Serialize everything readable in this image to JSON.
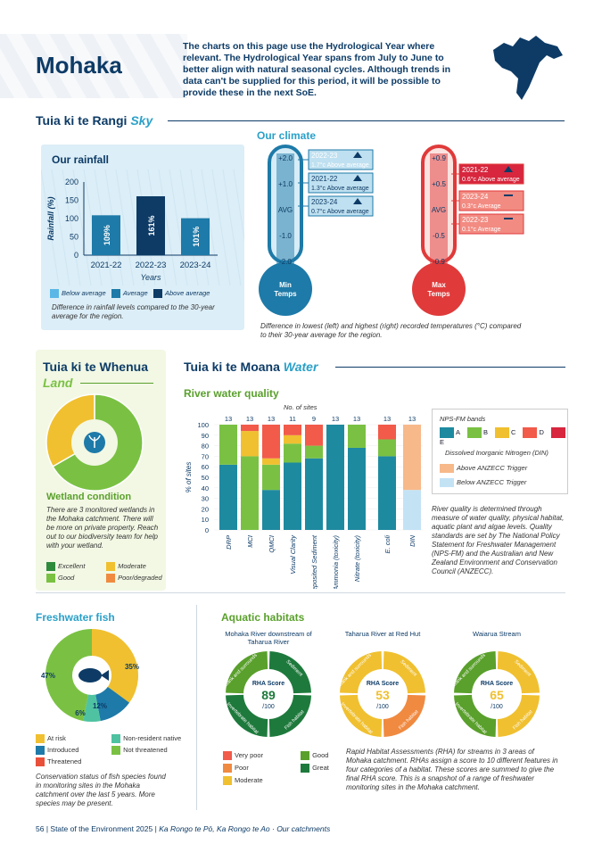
{
  "header": {
    "title": "Mohaka",
    "intro": "The charts on this page use the Hydrological Year where relevant. The Hydrological Year spans from July to June to better align with natural seasonal cycles. Although trends in data can't be supplied for this period, it will be possible to provide these in the next SoE."
  },
  "sky": {
    "heading": "Tuia ki te Rangi",
    "heading_en": "Sky"
  },
  "rainfall": {
    "title": "Our rainfall",
    "ylabel": "Rainfall (%)",
    "xlabel": "Years",
    "legend": [
      "Below average",
      "Average",
      "Above average"
    ],
    "note": "Difference in rainfall levels compared to the 30-year average for the region.",
    "chart_data": {
      "type": "bar",
      "categories": [
        "2021-22",
        "2022-23",
        "2023-24"
      ],
      "values": [
        109,
        161,
        101
      ],
      "labels": [
        "109%",
        "161%",
        "101%"
      ],
      "classes": [
        "Average",
        "Above average",
        "Average"
      ],
      "ylim": [
        0,
        200
      ],
      "yticks": [
        0,
        50,
        100,
        150,
        200
      ],
      "colors": {
        "Below average": "#5bb8e6",
        "Average": "#1e7aa8",
        "Above average": "#0d3b66"
      }
    }
  },
  "climate": {
    "title": "Our climate",
    "min": {
      "label1": "Min",
      "label2": "Temps",
      "ticks": [
        "+2.0",
        "+1.0",
        "AVG",
        "-1.0",
        "-2.0"
      ],
      "entries": [
        {
          "year": "2022-23",
          "text": "1.7°c Above average"
        },
        {
          "year": "2021-22",
          "text": "1.3°c Above average"
        },
        {
          "year": "2023-24",
          "text": "0.7°c Above average"
        }
      ]
    },
    "max": {
      "label1": "Max",
      "label2": "Temps",
      "ticks": [
        "+0.9",
        "+0.5",
        "AVG",
        "-0.5",
        "-0.9"
      ],
      "entries": [
        {
          "year": "2021-22",
          "text": "0.6°c Above average"
        },
        {
          "year": "2023-24",
          "text": "0.3°c Average"
        },
        {
          "year": "2022-23",
          "text": "0.1°c Average"
        }
      ]
    },
    "note": "Difference in lowest (left) and highest (right) recorded temperatures (°C) compared to their 30-year average for the region."
  },
  "land": {
    "heading": "Tuia ki te Whenua",
    "heading_en": "Land",
    "subtitle": "Wetland condition",
    "text": "There are 3 monitored wetlands in the Mohaka catchment. There will be more on private property. Reach out to our biodiversity team for help with your wetland.",
    "legend": [
      "Excellent",
      "Moderate",
      "Good",
      "Poor/degraded"
    ],
    "chart_data": {
      "type": "pie",
      "labels": [
        "Good",
        "Moderate"
      ],
      "values": [
        66.7,
        33.3
      ],
      "colors": [
        "#7ac143",
        "#f0c030"
      ]
    }
  },
  "water": {
    "heading": "Tuia ki te Moana",
    "heading_en": "Water",
    "subtitle": "River water quality",
    "top_label": "No. of sites",
    "ylabel": "% of sites",
    "yticks": [
      "0",
      "10",
      "20",
      "30",
      "40",
      "50",
      "60",
      "70",
      "80",
      "90",
      "100"
    ],
    "legend_title": "NPS-FM bands",
    "bands": [
      "A",
      "B",
      "C",
      "D",
      "E"
    ],
    "din_title": "Dissolved Inorganic Nitrogen (DIN)",
    "din_legend": [
      "Above ANZECC Trigger",
      "Below ANZECC Trigger"
    ],
    "text": "River quality is determined through measure of water quality, physical habitat, aquatic plant and algae levels. Quality standards are set by The National Policy Statement for Freshwater Management (NPS-FM) and the Australian and New Zealand Environment and Conservation Council (ANZECC).",
    "chart_data": {
      "type": "bar",
      "stacked": true,
      "ylim": [
        0,
        100
      ],
      "categories": [
        "DRP",
        "MCI",
        "QMCI",
        "Visual Clarity",
        "Deposited Sediment",
        "Ammonia (toxicity)",
        "Nitrate (toxicity)",
        "E. coli",
        "DIN"
      ],
      "counts": [
        "13",
        "13",
        "13",
        "11",
        "9",
        "13",
        "13",
        "13",
        "13"
      ],
      "series": [
        {
          "name": "A",
          "values": [
            62,
            0,
            38,
            64,
            68,
            100,
            78,
            70,
            0
          ]
        },
        {
          "name": "B",
          "values": [
            38,
            70,
            24,
            18,
            12,
            0,
            22,
            16,
            0
          ]
        },
        {
          "name": "C",
          "values": [
            0,
            24,
            6,
            8,
            0,
            0,
            0,
            0,
            0
          ]
        },
        {
          "name": "D",
          "values": [
            0,
            6,
            32,
            10,
            20,
            0,
            0,
            14,
            0
          ]
        },
        {
          "name": "Below ANZECC Trigger",
          "values": [
            0,
            0,
            0,
            0,
            0,
            0,
            0,
            0,
            38
          ]
        },
        {
          "name": "Above ANZECC Trigger",
          "values": [
            0,
            0,
            0,
            0,
            0,
            0,
            0,
            0,
            62
          ]
        }
      ]
    }
  },
  "fish": {
    "title": "Freshwater fish",
    "legend": [
      "At risk",
      "Non-resident native",
      "Introduced",
      "Not threatened",
      "Threatened"
    ],
    "note": "Conservation status of fish species found in monitoring sites in the Mohaka catchment over the last 5 years. More species may be present.",
    "chart_data": {
      "type": "pie",
      "labels": [
        "At risk",
        "Introduced",
        "Non-resident native",
        "Not threatened"
      ],
      "values": [
        35,
        12,
        6,
        47
      ],
      "display": [
        "35%",
        "12%",
        "6%",
        "47%"
      ],
      "colors": [
        "#f0c030",
        "#1e7aa8",
        "#4fc3a1",
        "#7ac143"
      ]
    }
  },
  "habitats": {
    "title": "Aquatic habitats",
    "score_label": "RHA Score",
    "of": "/100",
    "quadrants": [
      "Bank and surrounds",
      "Sediment",
      "Fish habitat",
      "Invertebrate habitat"
    ],
    "sites": [
      {
        "name": "Mohaka River downstream of Taharua River",
        "score": "89",
        "colors": [
          "#5aa02c",
          "#1e7a3c",
          "#1e7a3c",
          "#1e7a3c"
        ]
      },
      {
        "name": "Taharua River at Red Hut",
        "score": "53",
        "colors": [
          "#f0c030",
          "#f0c030",
          "#f08a40",
          "#f0c030"
        ]
      },
      {
        "name": "Waiarua Stream",
        "score": "65",
        "colors": [
          "#5aa02c",
          "#f0c030",
          "#f0c030",
          "#5aa02c"
        ]
      }
    ],
    "legend": [
      "Very poor",
      "Good",
      "Poor",
      "Great",
      "Moderate"
    ],
    "note": "Rapid Habitat Assessments (RHA) for streams in 3 areas of Mohaka catchment. RHAs assign a score to 10 different features in four categories of a habitat. These scores are summed to give the final RHA score. This is a snapshot of a range of freshwater monitoring sites in the Mohaka catchment."
  },
  "footer": {
    "page": "56",
    "text": "State of the Environment 2025",
    "sep": "|",
    "sub": "Ka Rongo te Pō, Ka Rongo te Ao · Our catchments"
  }
}
